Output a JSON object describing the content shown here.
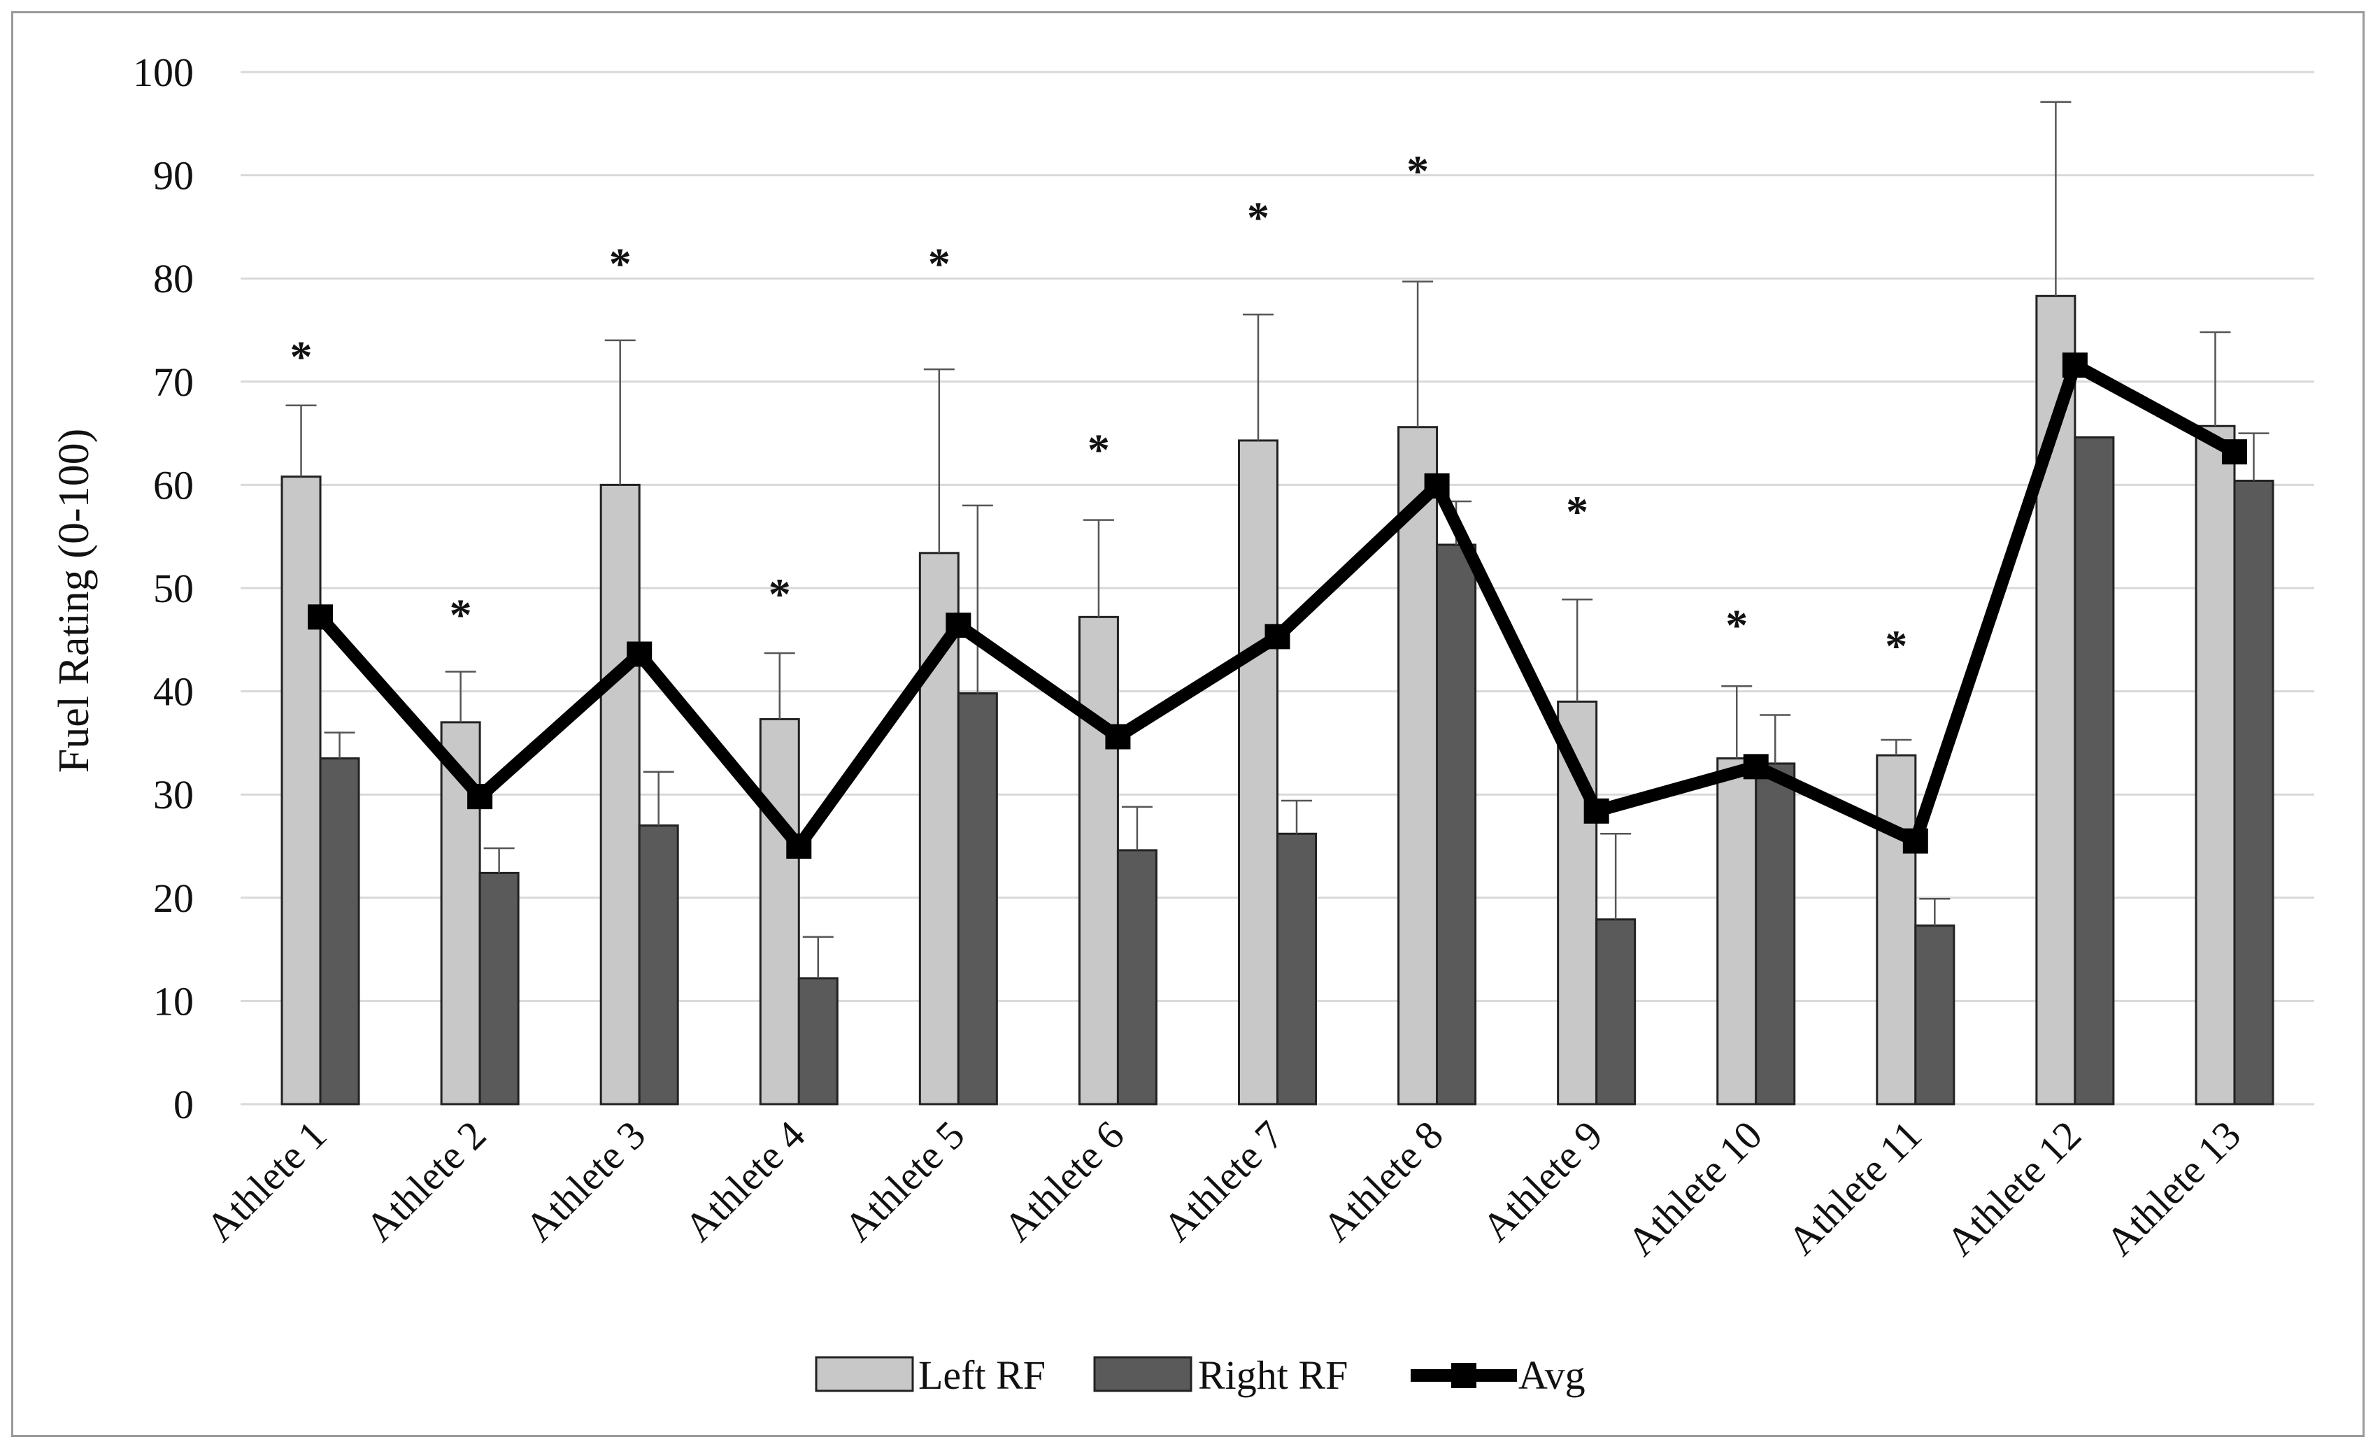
{
  "chart_data": {
    "type": "bar",
    "ylabel": "Fuel Rating (0-100)",
    "xlabel": "",
    "ylim": [
      0,
      100
    ],
    "yticks": [
      0,
      10,
      20,
      30,
      40,
      50,
      60,
      70,
      80,
      90,
      100
    ],
    "grid": true,
    "legend_position": "bottom",
    "categories": [
      "Athlete 1",
      "Athlete 2",
      "Athlete 3",
      "Athlete 4",
      "Athlete 5",
      "Athlete 6",
      "Athlete 7",
      "Athlete 8",
      "Athlete 9",
      "Athlete 10",
      "Athlete 11",
      "Athlete 12",
      "Athlete 13"
    ],
    "series": [
      {
        "name": "Left RF",
        "kind": "bar",
        "color": "#c8c8c8",
        "values": [
          60.8,
          37.0,
          60.0,
          37.3,
          53.4,
          47.2,
          64.3,
          65.6,
          39.0,
          33.5,
          33.8,
          78.3,
          65.7
        ],
        "errors": [
          6.9,
          4.9,
          14.0,
          6.4,
          17.8,
          9.4,
          12.2,
          14.1,
          9.9,
          7.0,
          1.5,
          18.8,
          9.1
        ]
      },
      {
        "name": "Right RF",
        "kind": "bar",
        "color": "#5a5a5a",
        "values": [
          33.5,
          22.4,
          27.0,
          12.2,
          39.8,
          24.6,
          26.2,
          54.2,
          17.9,
          33.0,
          17.3,
          64.6,
          60.4
        ],
        "errors": [
          2.5,
          2.4,
          5.2,
          4.0,
          18.2,
          4.2,
          3.2,
          4.2,
          8.3,
          4.7,
          2.6,
          0,
          4.6
        ]
      },
      {
        "name": "Avg",
        "kind": "line",
        "color": "#000000",
        "values": [
          47.2,
          29.8,
          43.6,
          25.0,
          46.4,
          35.6,
          45.3,
          59.9,
          28.4,
          32.7,
          25.5,
          71.6,
          63.2
        ]
      }
    ],
    "significance_marker": "*",
    "significant": [
      true,
      true,
      true,
      true,
      true,
      true,
      true,
      true,
      true,
      true,
      true,
      false,
      false
    ],
    "marker_values": [
      73,
      48,
      82,
      50,
      82,
      64,
      86.5,
      91,
      58,
      47,
      45,
      null,
      null
    ]
  }
}
